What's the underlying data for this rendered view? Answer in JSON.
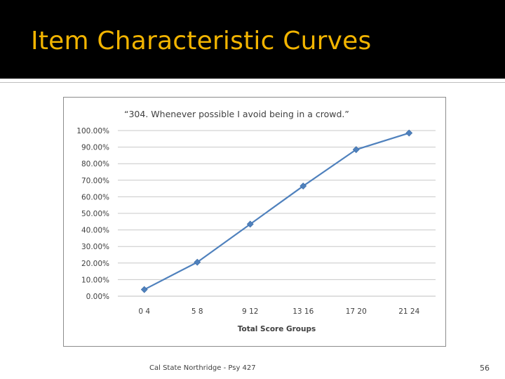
{
  "slide": {
    "title": "Item Characteristic Curves",
    "footer": "Cal State Northridge - Psy 427",
    "page_number": "56",
    "title_color": "#f2b400"
  },
  "chart_data": {
    "type": "line",
    "title": "“304. Whenever possible I avoid being in a crowd.”",
    "xlabel": "Total Score Groups",
    "ylabel": "",
    "categories": [
      "0 4",
      "5 8",
      "9 12",
      "13 16",
      "17 20",
      "21 24"
    ],
    "series": [
      {
        "values": [
          4.0,
          20.5,
          43.5,
          66.5,
          88.5,
          98.5
        ],
        "color": "#4f81bd"
      }
    ],
    "ylim": [
      0,
      100
    ],
    "yticks": [
      0,
      10,
      20,
      30,
      40,
      50,
      60,
      70,
      80,
      90,
      100
    ],
    "ytick_labels": [
      "0.00%",
      "10.00%",
      "20.00%",
      "30.00%",
      "40.00%",
      "50.00%",
      "60.00%",
      "70.00%",
      "80.00%",
      "90.00%",
      "100.00%"
    ],
    "grid": true,
    "legend": "none"
  }
}
